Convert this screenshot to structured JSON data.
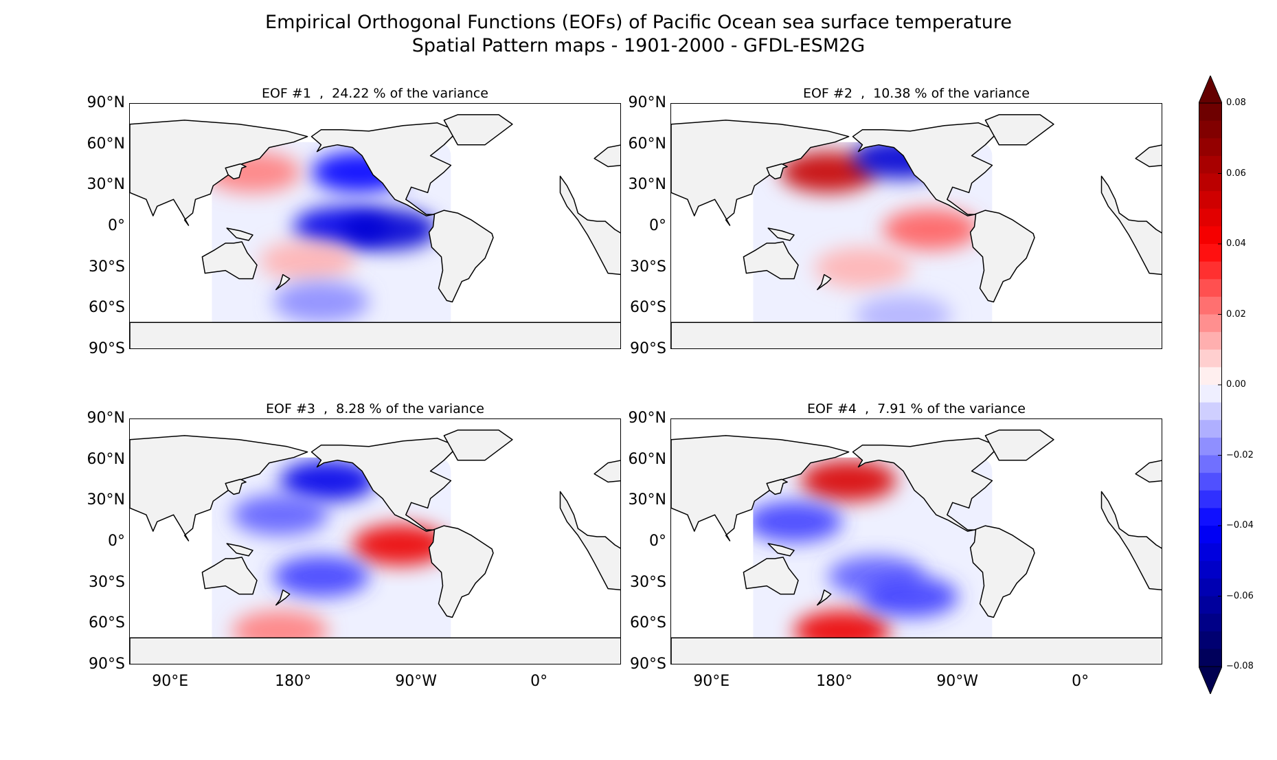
{
  "chart_data": {
    "type": "heatmap",
    "title": "Empirical Orthogonal Functions (EOFs) of Pacific Ocean sea surface temperature",
    "subtitle": "Spatial Pattern maps - 1901-2000 - GFDL-ESM2G",
    "colormap": "seismic",
    "color_range": [
      -0.08,
      0.08
    ],
    "colorbar_ticks": [
      "0.08",
      "0.06",
      "0.04",
      "0.02",
      "0.00",
      "−0.02",
      "−0.04",
      "−0.06",
      "−0.08"
    ],
    "colors": {
      "negative": "#0000ff",
      "positive": "#ff0000",
      "land": "#f2f2f2",
      "neutral": "#ffffff"
    },
    "lat_ticks": [
      "90°N",
      "60°N",
      "30°N",
      "0°",
      "30°S",
      "60°S",
      "90°S"
    ],
    "lon_ticks": [
      "90°E",
      "180°",
      "90°W",
      "0°"
    ],
    "lon_range": [
      60,
      420
    ],
    "lat_range": [
      -90,
      90
    ],
    "panels": [
      {
        "label": "EOF #1  ,  24.22 % of the variance",
        "eof": 1,
        "variance_pct": 24.22,
        "features": [
          {
            "lon": 215,
            "lat": 0,
            "value": -0.045
          },
          {
            "lon": 250,
            "lat": -2,
            "value": -0.05
          },
          {
            "lon": 228,
            "lat": 40,
            "value": -0.04
          },
          {
            "lon": 150,
            "lat": 40,
            "value": 0.02
          },
          {
            "lon": 190,
            "lat": -25,
            "value": 0.012
          },
          {
            "lon": 200,
            "lat": -55,
            "value": -0.018
          }
        ]
      },
      {
        "label": "EOF #2  ,  10.38 % of the variance",
        "eof": 2,
        "variance_pct": 10.38,
        "features": [
          {
            "lon": 175,
            "lat": 40,
            "value": 0.055
          },
          {
            "lon": 228,
            "lat": 50,
            "value": -0.05
          },
          {
            "lon": 250,
            "lat": -2,
            "value": 0.025
          },
          {
            "lon": 200,
            "lat": -30,
            "value": 0.012
          },
          {
            "lon": 230,
            "lat": -65,
            "value": -0.012
          }
        ]
      },
      {
        "label": "EOF #3  ,  8.28 % of the variance",
        "eof": 3,
        "variance_pct": 8.28,
        "features": [
          {
            "lon": 205,
            "lat": 45,
            "value": -0.045
          },
          {
            "lon": 170,
            "lat": 20,
            "value": -0.025
          },
          {
            "lon": 258,
            "lat": -2,
            "value": 0.045
          },
          {
            "lon": 200,
            "lat": -25,
            "value": -0.03
          },
          {
            "lon": 170,
            "lat": -65,
            "value": 0.02
          }
        ]
      },
      {
        "label": "EOF #4  ,  7.91 % of the variance",
        "eof": 4,
        "variance_pct": 7.91,
        "features": [
          {
            "lon": 190,
            "lat": 45,
            "value": 0.05
          },
          {
            "lon": 150,
            "lat": 15,
            "value": -0.03
          },
          {
            "lon": 210,
            "lat": -25,
            "value": -0.025
          },
          {
            "lon": 185,
            "lat": -65,
            "value": 0.045
          },
          {
            "lon": 235,
            "lat": -40,
            "value": -0.03
          }
        ]
      }
    ]
  }
}
